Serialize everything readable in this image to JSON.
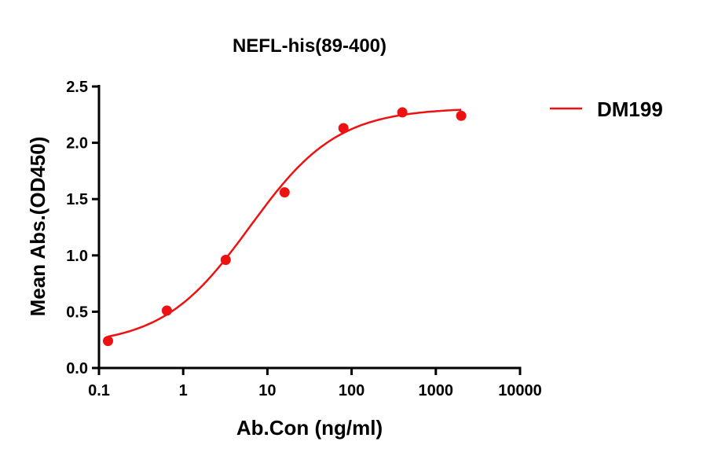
{
  "chart_data": {
    "type": "scatter",
    "title": "NEFL-his(89-400)",
    "xlabel": "Ab.Con (ng/ml)",
    "ylabel": "Mean Abs.(OD450)",
    "xscale": "log",
    "xlim": [
      0.1,
      10000
    ],
    "ylim": [
      0,
      2.5
    ],
    "xticks": [
      "0.1",
      "1",
      "10",
      "100",
      "1000",
      "10000"
    ],
    "yticks": [
      "0.0",
      "0.5",
      "1.0",
      "1.5",
      "2.0",
      "2.5"
    ],
    "grid": false,
    "legend_position": "top-right",
    "series": [
      {
        "name": "DM199",
        "color": "#ee1111",
        "x": [
          0.128,
          0.64,
          3.2,
          16,
          80,
          400,
          2000
        ],
        "y": [
          0.24,
          0.51,
          0.96,
          1.56,
          2.13,
          2.27,
          2.24
        ],
        "fit": "four-parameter logistic curve"
      }
    ]
  }
}
